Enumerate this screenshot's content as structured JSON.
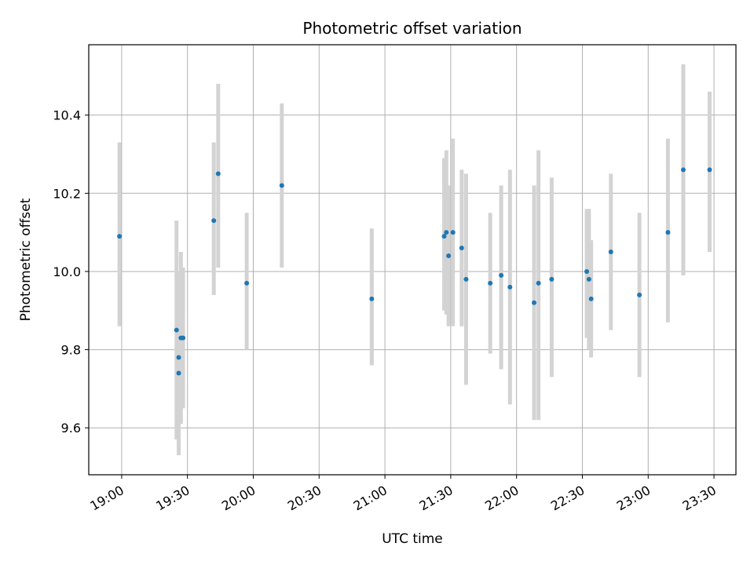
{
  "chart_data": {
    "type": "scatter",
    "title": "Photometric offset variation",
    "xlabel": "UTC time",
    "ylabel": "Photometric offset",
    "x_ticks": [
      "19:00",
      "19:30",
      "20:00",
      "20:30",
      "21:00",
      "21:30",
      "22:00",
      "22:30",
      "23:00",
      "23:30"
    ],
    "y_ticks": [
      "9.6",
      "9.8",
      "10.0",
      "10.2",
      "10.4"
    ],
    "xlim": [
      "18:45",
      "23:40"
    ],
    "ylim": [
      9.48,
      10.58
    ],
    "grid": true,
    "marker_color": "#1f77b4",
    "errorbar_color": "#d3d3d3",
    "series": [
      {
        "points": [
          {
            "x": "18:59",
            "y": 10.09,
            "ylow": 9.86,
            "yhigh": 10.33
          },
          {
            "x": "19:25",
            "y": 9.85,
            "ylow": 9.57,
            "yhigh": 10.13
          },
          {
            "x": "19:26",
            "y": 9.74,
            "ylow": 9.53,
            "yhigh": 9.96
          },
          {
            "x": "19:26",
            "y": 9.78,
            "ylow": 9.55,
            "yhigh": 10.0
          },
          {
            "x": "19:27",
            "y": 9.83,
            "ylow": 9.61,
            "yhigh": 10.05
          },
          {
            "x": "19:28",
            "y": 9.83,
            "ylow": 9.65,
            "yhigh": 10.01
          },
          {
            "x": "19:42",
            "y": 10.13,
            "ylow": 9.94,
            "yhigh": 10.33
          },
          {
            "x": "19:44",
            "y": 10.25,
            "ylow": 10.01,
            "yhigh": 10.48
          },
          {
            "x": "19:57",
            "y": 9.97,
            "ylow": 9.8,
            "yhigh": 10.15
          },
          {
            "x": "20:13",
            "y": 10.22,
            "ylow": 10.01,
            "yhigh": 10.43
          },
          {
            "x": "20:54",
            "y": 9.93,
            "ylow": 9.76,
            "yhigh": 10.11
          },
          {
            "x": "21:27",
            "y": 10.09,
            "ylow": 9.9,
            "yhigh": 10.29
          },
          {
            "x": "21:28",
            "y": 10.1,
            "ylow": 9.89,
            "yhigh": 10.31
          },
          {
            "x": "21:29",
            "y": 10.04,
            "ylow": 9.86,
            "yhigh": 10.22
          },
          {
            "x": "21:31",
            "y": 10.1,
            "ylow": 9.86,
            "yhigh": 10.34
          },
          {
            "x": "21:35",
            "y": 10.06,
            "ylow": 9.86,
            "yhigh": 10.26
          },
          {
            "x": "21:37",
            "y": 9.98,
            "ylow": 9.71,
            "yhigh": 10.25
          },
          {
            "x": "21:48",
            "y": 9.97,
            "ylow": 9.79,
            "yhigh": 10.15
          },
          {
            "x": "21:53",
            "y": 9.99,
            "ylow": 9.75,
            "yhigh": 10.22
          },
          {
            "x": "21:57",
            "y": 9.96,
            "ylow": 9.66,
            "yhigh": 10.26
          },
          {
            "x": "22:08",
            "y": 9.92,
            "ylow": 9.62,
            "yhigh": 10.22
          },
          {
            "x": "22:10",
            "y": 9.97,
            "ylow": 9.62,
            "yhigh": 10.31
          },
          {
            "x": "22:16",
            "y": 9.98,
            "ylow": 9.73,
            "yhigh": 10.24
          },
          {
            "x": "22:32",
            "y": 10.0,
            "ylow": 9.83,
            "yhigh": 10.16
          },
          {
            "x": "22:33",
            "y": 9.98,
            "ylow": 9.8,
            "yhigh": 10.16
          },
          {
            "x": "22:34",
            "y": 9.93,
            "ylow": 9.78,
            "yhigh": 10.08
          },
          {
            "x": "22:43",
            "y": 10.05,
            "ylow": 9.85,
            "yhigh": 10.25
          },
          {
            "x": "22:56",
            "y": 9.94,
            "ylow": 9.73,
            "yhigh": 10.15
          },
          {
            "x": "23:09",
            "y": 10.1,
            "ylow": 9.87,
            "yhigh": 10.34
          },
          {
            "x": "23:16",
            "y": 10.26,
            "ylow": 9.99,
            "yhigh": 10.53
          },
          {
            "x": "23:28",
            "y": 10.26,
            "ylow": 10.05,
            "yhigh": 10.46
          }
        ]
      }
    ]
  }
}
